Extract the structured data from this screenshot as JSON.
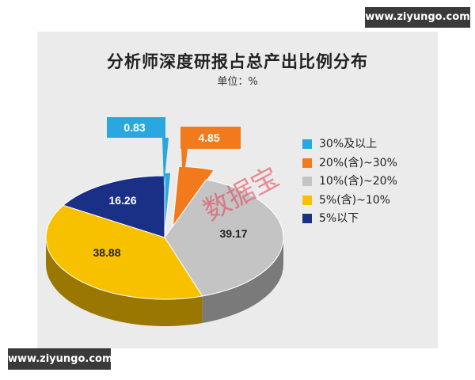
{
  "watermark_top": "www.ziyungo.com",
  "watermark_bottom": "www.ziyungo.com",
  "stamp": "数据宝",
  "chart_data": {
    "type": "pie",
    "title": "分析师深度研报占总产出比例分布",
    "subtitle": "单位：%",
    "legend_position": "right",
    "slices": [
      {
        "label": "30%及以上",
        "value": 0.83,
        "value_label": "0.83",
        "color": "#2aa7df"
      },
      {
        "label": "20%(含)~30%",
        "value": 4.85,
        "value_label": "4.85",
        "color": "#f07a1c"
      },
      {
        "label": "10%(含)~20%",
        "value": 39.17,
        "value_label": "39.17",
        "color": "#c4c4c4"
      },
      {
        "label": "5%(含)~10%",
        "value": 38.88,
        "value_label": "38.88",
        "color": "#f8c100"
      },
      {
        "label": "5%以下",
        "value": 16.26,
        "value_label": "16.26",
        "color": "#1a2f86"
      }
    ]
  }
}
